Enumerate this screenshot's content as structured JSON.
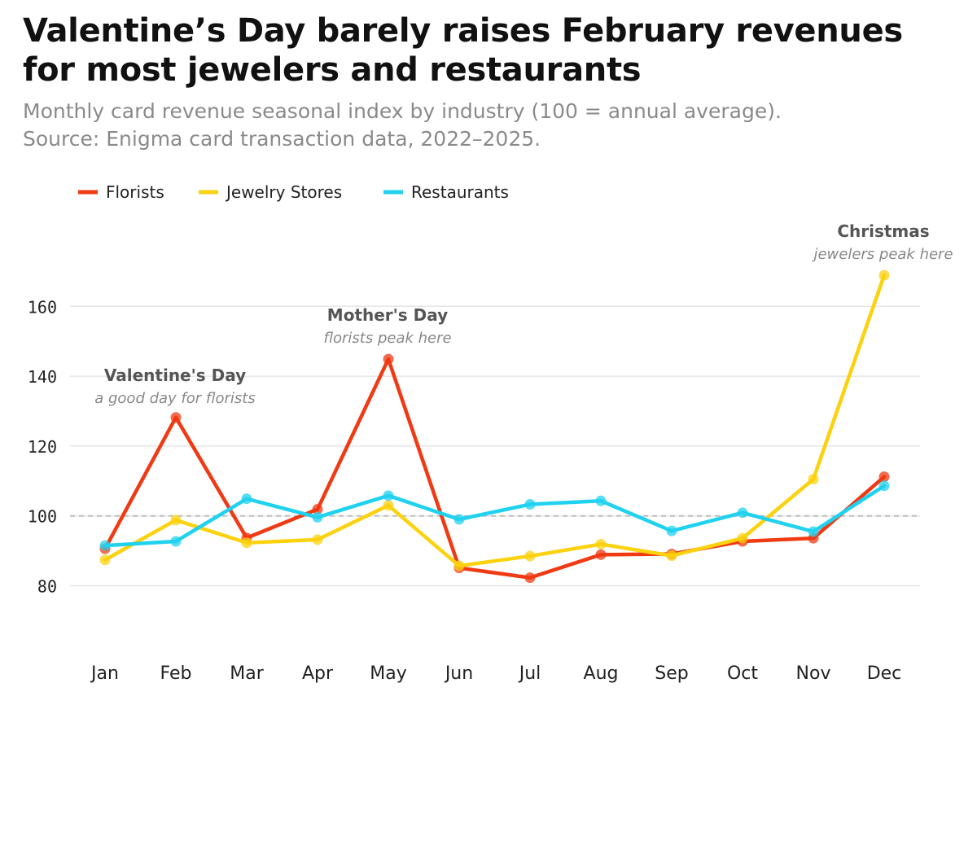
{
  "chart_data": {
    "type": "line",
    "title_lines": [
      "Valentine’s Day barely raises February revenues",
      "for most jewelers and restaurants"
    ],
    "subtitle_lines": [
      "Monthly card revenue seasonal index by industry (100 = annual average).",
      "Source: Enigma card transaction data, 2022–2025."
    ],
    "categories": [
      "Jan",
      "Feb",
      "Mar",
      "Apr",
      "May",
      "Jun",
      "Jul",
      "Aug",
      "Sep",
      "Oct",
      "Nov",
      "Dec"
    ],
    "yticks": [
      80,
      100,
      120,
      140,
      160
    ],
    "ylim": [
      70,
      170
    ],
    "reference_line": 100,
    "series": [
      {
        "name": "Florists",
        "color": "#f03a13",
        "values": [
          90.6,
          128.2,
          93.7,
          101.9,
          144.9,
          85.1,
          82.3,
          88.9,
          89.1,
          92.7,
          93.6,
          111.2
        ]
      },
      {
        "name": "Jewelry Stores",
        "color": "#fcd20f",
        "values": [
          87.4,
          98.8,
          92.3,
          93.2,
          103.0,
          85.7,
          88.5,
          91.9,
          88.6,
          93.6,
          110.5,
          168.9
        ]
      },
      {
        "name": "Restaurants",
        "color": "#20d2f0",
        "values": [
          91.5,
          92.7,
          104.9,
          99.6,
          105.8,
          99.0,
          103.3,
          104.3,
          95.7,
          100.9,
          95.5,
          108.6
        ]
      }
    ],
    "annotations": [
      {
        "month": "Feb",
        "title": "Valentine's Day",
        "subtitle": "a good day for florists"
      },
      {
        "month": "May",
        "title": "Mother's Day",
        "subtitle": "florists peak here"
      },
      {
        "month": "Dec",
        "title": "Christmas",
        "subtitle": "jewelers peak here"
      }
    ]
  }
}
